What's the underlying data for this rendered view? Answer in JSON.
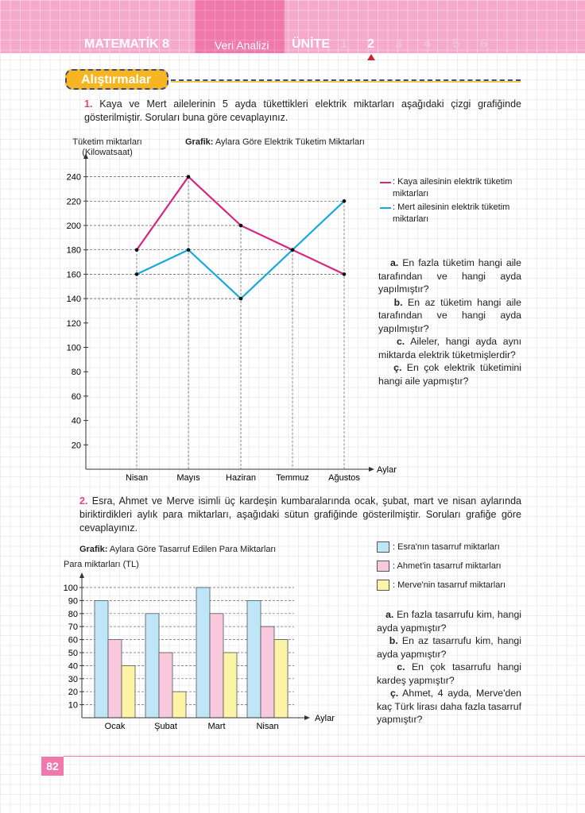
{
  "header": {
    "book": "MATEMATİK 8",
    "topic": "Veri Analizi",
    "unit_label": "ÜNİTE",
    "units": [
      "1",
      "2",
      "3",
      "4",
      "5",
      "6"
    ],
    "current_unit": "2"
  },
  "section": "Alıştırmalar",
  "q1": {
    "number": "1.",
    "text": "Kaya ve Mert ailelerinin 5 ayda tükettikleri elektrik miktarları aşağıdaki çizgi grafiğinde gösterilmiştir. Soruları buna göre cevaplayınız.",
    "questions": [
      {
        "k": "a.",
        "t": "En fazla tüketim hangi aile tarafından ve hangi ayda yapılmıştır?"
      },
      {
        "k": "b.",
        "t": "En az tüketim hangi aile tarafından ve hangi ayda yapılmıştır?"
      },
      {
        "k": "c.",
        "t": "Aileler, hangi ayda aynı miktarda elektrik tüketmişlerdir?"
      },
      {
        "k": "ç.",
        "t": "En çok elektrik tüketimini hangi aile yapmıştır?"
      }
    ]
  },
  "q2": {
    "number": "2.",
    "text": "Esra, Ahmet ve Merve isimli üç kardeşin kumbaralarında ocak, şubat, mart ve nisan aylarında biriktirdikleri aylık para miktarları, aşağıdaki sütun grafiğinde gösterilmiştir. Soruları grafiğe göre cevaplayınız.",
    "questions": [
      {
        "k": "a.",
        "t": "En fazla tasarrufu kim, hangi ayda yapmıştır?"
      },
      {
        "k": "b.",
        "t": "En az tasarrufu kim, hangi ayda yapmıştır?"
      },
      {
        "k": "c.",
        "t": "En çok tasarrufu hangi kardeş yapmıştır?"
      },
      {
        "k": "ç.",
        "t": "Ahmet, 4 ayda, Merve'den kaç Türk lirası daha fazla tasarruf yapmıştır?"
      }
    ]
  },
  "chart_data": [
    {
      "type": "line",
      "title_prefix": "Grafik:",
      "title": "Aylara Göre Elektrik Tüketim Miktarları",
      "ylabel": "Tüketim miktarları",
      "ylabel2": "(Kilowatsaat)",
      "xlabel": "Aylar",
      "categories": [
        "Nisan",
        "Mayıs",
        "Haziran",
        "Temmuz",
        "Ağustos"
      ],
      "yticks": [
        20,
        40,
        60,
        80,
        100,
        120,
        140,
        160,
        180,
        200,
        220,
        240
      ],
      "ylim": [
        0,
        250
      ],
      "grid": "dashed",
      "series": [
        {
          "name": ": Kaya ailesinin elektrik tüketim miktarları",
          "color": "#d6267f",
          "values": [
            180,
            240,
            200,
            180,
            160
          ]
        },
        {
          "name": ": Mert ailesinin elektrik tüketim miktarları",
          "color": "#1aa9de",
          "values": [
            160,
            180,
            140,
            180,
            220
          ]
        }
      ],
      "legend": "right"
    },
    {
      "type": "bar",
      "title_prefix": "Grafik:",
      "title": "Aylara Göre Tasarruf Edilen Para Miktarları",
      "ylabel": "Para miktarları (TL)",
      "xlabel": "Aylar",
      "categories": [
        "Ocak",
        "Şubat",
        "Mart",
        "Nisan"
      ],
      "yticks": [
        10,
        20,
        30,
        40,
        50,
        60,
        70,
        80,
        90,
        100
      ],
      "ylim": [
        0,
        105
      ],
      "grid": "dashed",
      "series": [
        {
          "name": ": Esra'nın tasarruf miktarları",
          "color": "#bfe6f7",
          "values": [
            90,
            80,
            100,
            90
          ]
        },
        {
          "name": ": Ahmet'in tasarruf miktarları",
          "color": "#f8c8dc",
          "values": [
            60,
            50,
            80,
            70
          ]
        },
        {
          "name": ": Merve'nin tasarruf miktarları",
          "color": "#fbf3a6",
          "values": [
            40,
            20,
            50,
            60
          ]
        }
      ],
      "legend": "top-right"
    }
  ],
  "page_number": "82"
}
